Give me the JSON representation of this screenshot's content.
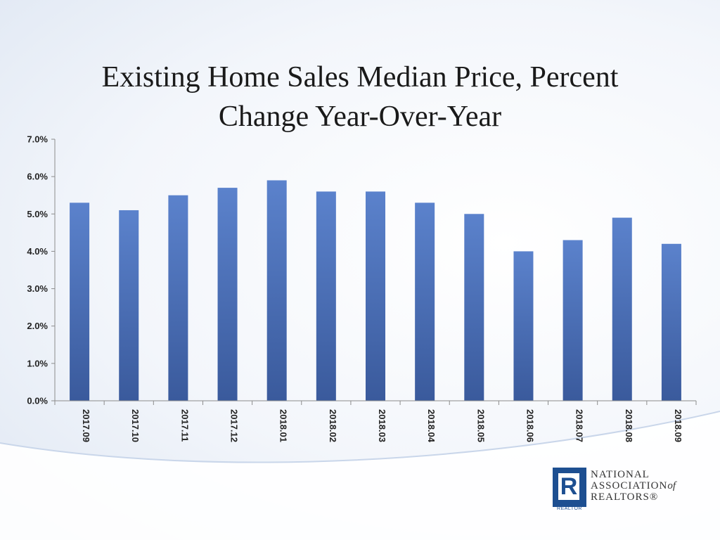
{
  "title_line1": "Existing Home Sales Median Price, Percent",
  "title_line2": "Change Year-Over-Year",
  "logo": {
    "letter": "R",
    "sub": "REALTOR",
    "line1": "NATIONAL",
    "line2": "ASSOCIATION",
    "line2_suffix": "of",
    "line3": "REALTORS®"
  },
  "colors": {
    "bar_top": "#5b82cc",
    "bar_bottom": "#3a5a9c",
    "axis": "#8c8c8c"
  },
  "chart_data": {
    "type": "bar",
    "title": "Existing Home Sales Median Price, Percent Change Year-Over-Year",
    "categories": [
      "2017.09",
      "2017.10",
      "2017.11",
      "2017.12",
      "2018.01",
      "2018.02",
      "2018.03",
      "2018.04",
      "2018.05",
      "2018.06",
      "2018.07",
      "2018.08",
      "2018.09"
    ],
    "values": [
      5.3,
      5.1,
      5.5,
      5.7,
      5.9,
      5.6,
      5.6,
      5.3,
      5.0,
      4.0,
      4.3,
      4.9,
      4.2
    ],
    "ylim": [
      0,
      7
    ],
    "yticks": [
      "0.0%",
      "1.0%",
      "2.0%",
      "3.0%",
      "4.0%",
      "5.0%",
      "6.0%",
      "7.0%"
    ],
    "grid": false,
    "legend": "none"
  }
}
